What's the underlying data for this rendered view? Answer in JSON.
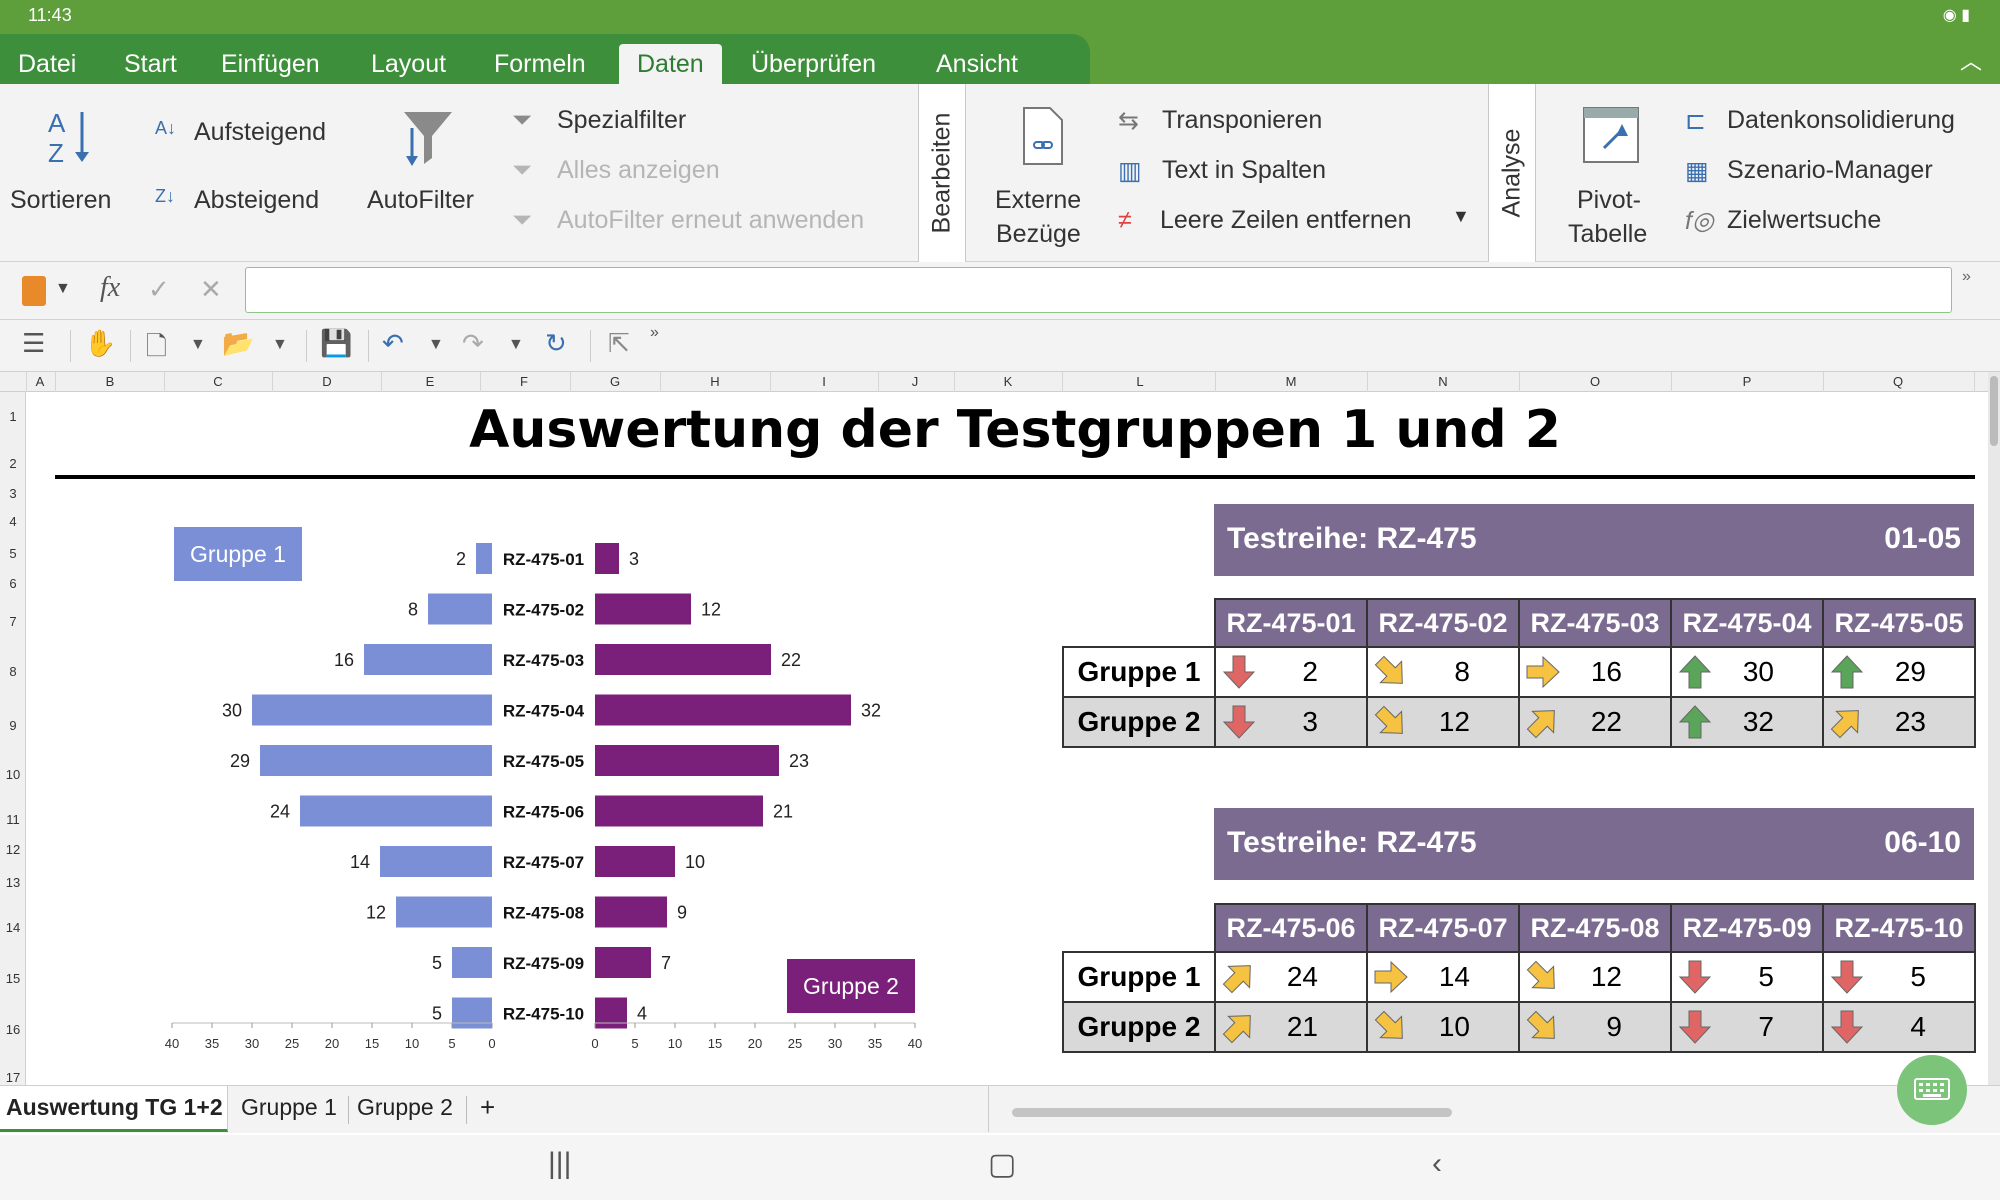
{
  "status": {
    "time": "11:43"
  },
  "menu": {
    "tabs": [
      "Datei",
      "Start",
      "Einfügen",
      "Layout",
      "Formeln",
      "Daten",
      "Überprüfen",
      "Ansicht"
    ],
    "active": "Daten"
  },
  "ribbon": {
    "sort": "Sortieren",
    "asc": "Aufsteigend",
    "desc": "Absteigend",
    "autofilter": "AutoFilter",
    "special_filter": "Spezialfilter",
    "show_all": "Alles anzeigen",
    "reapply": "AutoFilter erneut anwenden",
    "edit_group": "Bearbeiten",
    "external_refs_1": "Externe",
    "external_refs_2": "Bezüge",
    "transpose": "Transponieren",
    "text_to_columns": "Text in Spalten",
    "remove_empty": "Leere Zeilen entfernen",
    "analysis_group": "Analyse",
    "pivot_1": "Pivot-",
    "pivot_2": "Tabelle",
    "consolidate": "Datenkonsolidierung",
    "scenario": "Szenario-Manager",
    "goal_seek": "Zielwertsuche"
  },
  "formula_bar": {
    "fx": "fx",
    "value": ""
  },
  "columns": [
    "A",
    "B",
    "C",
    "D",
    "E",
    "F",
    "G",
    "H",
    "I",
    "J",
    "K",
    "L",
    "M",
    "N",
    "O",
    "P",
    "Q"
  ],
  "rows": [
    "1",
    "2",
    "3",
    "4",
    "5",
    "6",
    "7",
    "8",
    "9",
    "10",
    "11",
    "12",
    "13",
    "14",
    "15",
    "16",
    "17"
  ],
  "sheet": {
    "title": "Auswertung der Testgruppen 1 und 2"
  },
  "chart_data": {
    "type": "bar",
    "orientation": "horizontal-butterfly",
    "categories": [
      "RZ-475-01",
      "RZ-475-02",
      "RZ-475-03",
      "RZ-475-04",
      "RZ-475-05",
      "RZ-475-06",
      "RZ-475-07",
      "RZ-475-08",
      "RZ-475-09",
      "RZ-475-10"
    ],
    "series": [
      {
        "name": "Gruppe 1",
        "values": [
          2,
          8,
          16,
          30,
          29,
          24,
          14,
          12,
          5,
          5
        ],
        "color": "#7b8fd6"
      },
      {
        "name": "Gruppe 2",
        "values": [
          3,
          12,
          22,
          32,
          23,
          21,
          10,
          9,
          7,
          4
        ],
        "color": "#7a1f7a"
      }
    ],
    "left_axis_ticks": [
      "40",
      "35",
      "30",
      "25",
      "20",
      "15",
      "10",
      "5",
      "0"
    ],
    "right_axis_ticks": [
      "0",
      "5",
      "10",
      "15",
      "20",
      "25",
      "30",
      "35",
      "40"
    ],
    "xlim": [
      0,
      40
    ],
    "legend_left": "Gruppe 1",
    "legend_right": "Gruppe 2"
  },
  "tables": [
    {
      "title": "Testreihe: RZ-475",
      "range": "01-05",
      "columns": [
        "RZ-475-01",
        "RZ-475-02",
        "RZ-475-03",
        "RZ-475-04",
        "RZ-475-05"
      ],
      "rows": [
        {
          "label": "Gruppe 1",
          "values": [
            "2",
            "8",
            "16",
            "30",
            "29"
          ],
          "arrows": [
            "down",
            "down-right",
            "right",
            "up",
            "up"
          ]
        },
        {
          "label": "Gruppe 2",
          "values": [
            "3",
            "12",
            "22",
            "32",
            "23"
          ],
          "arrows": [
            "down",
            "down-right",
            "up-right",
            "up",
            "up-right"
          ]
        }
      ]
    },
    {
      "title": "Testreihe: RZ-475",
      "range": "06-10",
      "columns": [
        "RZ-475-06",
        "RZ-475-07",
        "RZ-475-08",
        "RZ-475-09",
        "RZ-475-10"
      ],
      "rows": [
        {
          "label": "Gruppe 1",
          "values": [
            "24",
            "14",
            "12",
            "5",
            "5"
          ],
          "arrows": [
            "up-right",
            "right",
            "down-right",
            "down",
            "down"
          ]
        },
        {
          "label": "Gruppe 2",
          "values": [
            "21",
            "10",
            "9",
            "7",
            "4"
          ],
          "arrows": [
            "up-right",
            "down-right",
            "down-right",
            "down",
            "down"
          ]
        }
      ]
    }
  ],
  "sheet_tabs": [
    "Auswertung TG 1+2",
    "Gruppe 1",
    "Gruppe 2"
  ],
  "sheet_add": "+",
  "colors": {
    "accent": "#3e8f3b",
    "header_purple": "#7b6b91",
    "group1": "#7b8fd6",
    "group2": "#7a1f7a"
  }
}
